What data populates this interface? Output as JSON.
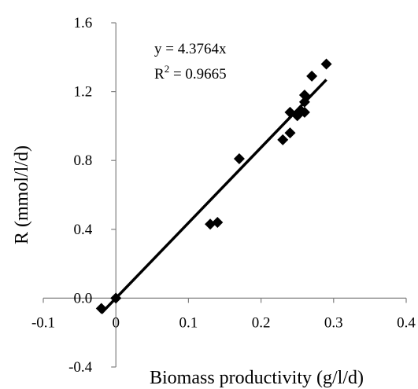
{
  "chart_data": {
    "type": "scatter",
    "title": "",
    "xlabel": "Biomass productivity (g/l/d)",
    "ylabel": "R (mmol/l/d)",
    "xlim": [
      -0.1,
      0.4
    ],
    "ylim": [
      -0.4,
      1.6
    ],
    "xticks": [
      -0.1,
      0,
      0.1,
      0.2,
      0.3,
      0.4
    ],
    "yticks": [
      -0.4,
      0.0,
      0.4,
      0.8,
      1.2,
      1.6
    ],
    "xtick_labels": [
      "-0.1",
      "0",
      "0.1",
      "0.2",
      "0.3",
      "0.4"
    ],
    "ytick_labels": [
      "-0.4",
      "0.0",
      "0.4",
      "0.8",
      "1.2",
      "1.6"
    ],
    "grid": false,
    "legend": "none",
    "marker": "diamond",
    "marker_color": "#000000",
    "series": [
      {
        "points": [
          {
            "x": -0.02,
            "y": -0.06
          },
          {
            "x": 0.0,
            "y": 0.0
          },
          {
            "x": 0.13,
            "y": 0.43
          },
          {
            "x": 0.14,
            "y": 0.44
          },
          {
            "x": 0.17,
            "y": 0.81
          },
          {
            "x": 0.23,
            "y": 0.92
          },
          {
            "x": 0.24,
            "y": 0.96
          },
          {
            "x": 0.24,
            "y": 1.08
          },
          {
            "x": 0.25,
            "y": 1.06
          },
          {
            "x": 0.255,
            "y": 1.09
          },
          {
            "x": 0.26,
            "y": 1.08
          },
          {
            "x": 0.26,
            "y": 1.14
          },
          {
            "x": 0.26,
            "y": 1.18
          },
          {
            "x": 0.27,
            "y": 1.29
          },
          {
            "x": 0.29,
            "y": 1.36
          }
        ]
      }
    ],
    "trendline": {
      "slope": 4.3764,
      "x_start": -0.02,
      "x_end": 0.29,
      "equation": "y = 4.3764x",
      "r2_prefix": "R",
      "r2_sup": "2",
      "r2_suffix": " = 0.9665"
    }
  }
}
